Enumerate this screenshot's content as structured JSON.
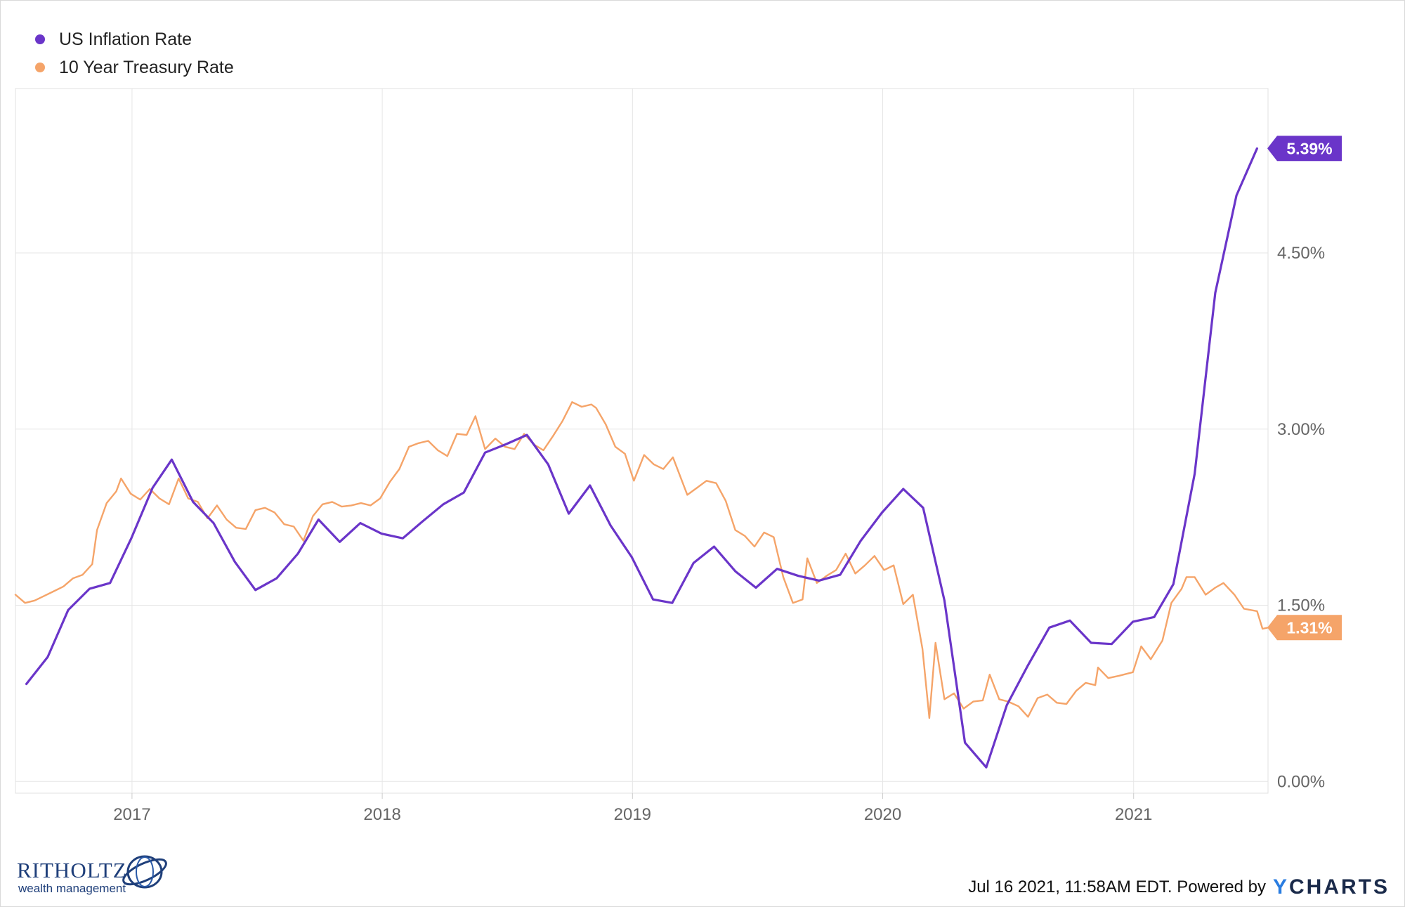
{
  "colors": {
    "inflation": "#6a35c9",
    "treasury": "#f5a469",
    "grid": "#e6e6e6",
    "axis_text": "#666666"
  },
  "footer": {
    "logo_main": "RITHOLTZ",
    "logo_sub": "wealth management",
    "timestamp": "Jul 16 2021, 11:58AM EDT. Powered by",
    "brand_y": "Y",
    "brand_rest": "CHARTS"
  },
  "chart_data": {
    "type": "line",
    "title": "",
    "xlabel": "",
    "ylabel": "",
    "x_ticks": [
      "2017",
      "2018",
      "2019",
      "2020",
      "2021"
    ],
    "y_ticks": [
      "0.00%",
      "1.50%",
      "3.00%",
      "4.50%"
    ],
    "ylim": [
      -0.1,
      5.9
    ],
    "xlim": [
      "2016-07-15",
      "2021-07-16"
    ],
    "grid": true,
    "legend_position": "top-left",
    "series": [
      {
        "name": "US Inflation Rate",
        "color": "#6a35c9",
        "last_label": "5.39%",
        "points": [
          [
            "2016-07-31",
            0.83
          ],
          [
            "2016-08-31",
            1.06
          ],
          [
            "2016-09-30",
            1.46
          ],
          [
            "2016-10-31",
            1.64
          ],
          [
            "2016-11-30",
            1.69
          ],
          [
            "2016-12-31",
            2.07
          ],
          [
            "2017-01-31",
            2.5
          ],
          [
            "2017-02-28",
            2.74
          ],
          [
            "2017-03-31",
            2.38
          ],
          [
            "2017-04-30",
            2.2
          ],
          [
            "2017-05-31",
            1.87
          ],
          [
            "2017-06-30",
            1.63
          ],
          [
            "2017-07-31",
            1.73
          ],
          [
            "2017-08-31",
            1.94
          ],
          [
            "2017-09-30",
            2.23
          ],
          [
            "2017-10-31",
            2.04
          ],
          [
            "2017-11-30",
            2.2
          ],
          [
            "2017-12-31",
            2.11
          ],
          [
            "2018-01-31",
            2.07
          ],
          [
            "2018-02-28",
            2.21
          ],
          [
            "2018-03-31",
            2.36
          ],
          [
            "2018-04-30",
            2.46
          ],
          [
            "2018-05-31",
            2.8
          ],
          [
            "2018-06-30",
            2.87
          ],
          [
            "2018-07-31",
            2.95
          ],
          [
            "2018-08-31",
            2.7
          ],
          [
            "2018-09-30",
            2.28
          ],
          [
            "2018-10-31",
            2.52
          ],
          [
            "2018-11-30",
            2.18
          ],
          [
            "2018-12-31",
            1.91
          ],
          [
            "2019-01-31",
            1.55
          ],
          [
            "2019-02-28",
            1.52
          ],
          [
            "2019-03-31",
            1.86
          ],
          [
            "2019-04-30",
            2.0
          ],
          [
            "2019-05-31",
            1.79
          ],
          [
            "2019-06-30",
            1.65
          ],
          [
            "2019-07-31",
            1.81
          ],
          [
            "2019-08-31",
            1.75
          ],
          [
            "2019-09-30",
            1.71
          ],
          [
            "2019-10-31",
            1.76
          ],
          [
            "2019-11-30",
            2.05
          ],
          [
            "2019-12-31",
            2.29
          ],
          [
            "2020-01-31",
            2.49
          ],
          [
            "2020-02-29",
            2.33
          ],
          [
            "2020-03-31",
            1.54
          ],
          [
            "2020-04-30",
            0.33
          ],
          [
            "2020-05-31",
            0.12
          ],
          [
            "2020-06-30",
            0.65
          ],
          [
            "2020-07-31",
            0.99
          ],
          [
            "2020-08-31",
            1.31
          ],
          [
            "2020-09-30",
            1.37
          ],
          [
            "2020-10-31",
            1.18
          ],
          [
            "2020-11-30",
            1.17
          ],
          [
            "2020-12-31",
            1.36
          ],
          [
            "2021-01-31",
            1.4
          ],
          [
            "2021-02-28",
            1.68
          ],
          [
            "2021-03-31",
            2.62
          ],
          [
            "2021-04-30",
            4.16
          ],
          [
            "2021-05-31",
            4.99
          ],
          [
            "2021-06-30",
            5.39
          ]
        ]
      },
      {
        "name": "10 Year Treasury Rate",
        "color": "#f5a469",
        "last_label": "1.31%",
        "points": [
          [
            "2016-07-15",
            1.59
          ],
          [
            "2016-07-29",
            1.52
          ],
          [
            "2016-08-12",
            1.54
          ],
          [
            "2016-08-26",
            1.58
          ],
          [
            "2016-09-09",
            1.62
          ],
          [
            "2016-09-23",
            1.66
          ],
          [
            "2016-10-07",
            1.73
          ],
          [
            "2016-10-21",
            1.76
          ],
          [
            "2016-11-04",
            1.85
          ],
          [
            "2016-11-11",
            2.14
          ],
          [
            "2016-11-25",
            2.37
          ],
          [
            "2016-12-09",
            2.47
          ],
          [
            "2016-12-16",
            2.58
          ],
          [
            "2016-12-30",
            2.45
          ],
          [
            "2017-01-13",
            2.4
          ],
          [
            "2017-01-27",
            2.49
          ],
          [
            "2017-02-10",
            2.41
          ],
          [
            "2017-02-24",
            2.36
          ],
          [
            "2017-03-10",
            2.58
          ],
          [
            "2017-03-24",
            2.41
          ],
          [
            "2017-04-07",
            2.38
          ],
          [
            "2017-04-21",
            2.24
          ],
          [
            "2017-05-05",
            2.35
          ],
          [
            "2017-05-19",
            2.23
          ],
          [
            "2017-06-02",
            2.16
          ],
          [
            "2017-06-16",
            2.15
          ],
          [
            "2017-06-30",
            2.31
          ],
          [
            "2017-07-14",
            2.33
          ],
          [
            "2017-07-28",
            2.29
          ],
          [
            "2017-08-11",
            2.19
          ],
          [
            "2017-08-25",
            2.17
          ],
          [
            "2017-09-08",
            2.05
          ],
          [
            "2017-09-22",
            2.26
          ],
          [
            "2017-10-06",
            2.36
          ],
          [
            "2017-10-20",
            2.38
          ],
          [
            "2017-11-03",
            2.34
          ],
          [
            "2017-11-17",
            2.35
          ],
          [
            "2017-12-01",
            2.37
          ],
          [
            "2017-12-15",
            2.35
          ],
          [
            "2017-12-29",
            2.41
          ],
          [
            "2018-01-12",
            2.55
          ],
          [
            "2018-01-26",
            2.66
          ],
          [
            "2018-02-09",
            2.85
          ],
          [
            "2018-02-23",
            2.88
          ],
          [
            "2018-03-09",
            2.9
          ],
          [
            "2018-03-23",
            2.82
          ],
          [
            "2018-04-06",
            2.77
          ],
          [
            "2018-04-20",
            2.96
          ],
          [
            "2018-05-04",
            2.95
          ],
          [
            "2018-05-17",
            3.11
          ],
          [
            "2018-05-31",
            2.83
          ],
          [
            "2018-06-15",
            2.92
          ],
          [
            "2018-06-29",
            2.85
          ],
          [
            "2018-07-13",
            2.83
          ],
          [
            "2018-07-27",
            2.96
          ],
          [
            "2018-08-10",
            2.87
          ],
          [
            "2018-08-24",
            2.82
          ],
          [
            "2018-09-07",
            2.94
          ],
          [
            "2018-09-21",
            3.07
          ],
          [
            "2018-10-05",
            3.23
          ],
          [
            "2018-10-19",
            3.19
          ],
          [
            "2018-11-02",
            3.21
          ],
          [
            "2018-11-09",
            3.18
          ],
          [
            "2018-11-23",
            3.04
          ],
          [
            "2018-12-07",
            2.85
          ],
          [
            "2018-12-21",
            2.79
          ],
          [
            "2019-01-03",
            2.56
          ],
          [
            "2019-01-18",
            2.78
          ],
          [
            "2019-02-01",
            2.7
          ],
          [
            "2019-02-15",
            2.66
          ],
          [
            "2019-03-01",
            2.76
          ],
          [
            "2019-03-22",
            2.44
          ],
          [
            "2019-04-05",
            2.5
          ],
          [
            "2019-04-19",
            2.56
          ],
          [
            "2019-05-03",
            2.54
          ],
          [
            "2019-05-17",
            2.39
          ],
          [
            "2019-05-31",
            2.14
          ],
          [
            "2019-06-14",
            2.09
          ],
          [
            "2019-06-28",
            2.0
          ],
          [
            "2019-07-12",
            2.12
          ],
          [
            "2019-07-26",
            2.08
          ],
          [
            "2019-08-09",
            1.74
          ],
          [
            "2019-08-23",
            1.52
          ],
          [
            "2019-09-06",
            1.55
          ],
          [
            "2019-09-13",
            1.9
          ],
          [
            "2019-09-27",
            1.69
          ],
          [
            "2019-10-11",
            1.75
          ],
          [
            "2019-10-25",
            1.8
          ],
          [
            "2019-11-08",
            1.94
          ],
          [
            "2019-11-22",
            1.77
          ],
          [
            "2019-12-06",
            1.84
          ],
          [
            "2019-12-20",
            1.92
          ],
          [
            "2020-01-03",
            1.8
          ],
          [
            "2020-01-17",
            1.84
          ],
          [
            "2020-01-31",
            1.51
          ],
          [
            "2020-02-14",
            1.59
          ],
          [
            "2020-02-28",
            1.13
          ],
          [
            "2020-03-09",
            0.54
          ],
          [
            "2020-03-18",
            1.18
          ],
          [
            "2020-03-31",
            0.7
          ],
          [
            "2020-04-14",
            0.75
          ],
          [
            "2020-04-28",
            0.62
          ],
          [
            "2020-05-12",
            0.68
          ],
          [
            "2020-05-26",
            0.69
          ],
          [
            "2020-06-05",
            0.91
          ],
          [
            "2020-06-19",
            0.7
          ],
          [
            "2020-07-02",
            0.68
          ],
          [
            "2020-07-17",
            0.64
          ],
          [
            "2020-07-31",
            0.55
          ],
          [
            "2020-08-14",
            0.71
          ],
          [
            "2020-08-28",
            0.74
          ],
          [
            "2020-09-11",
            0.67
          ],
          [
            "2020-09-25",
            0.66
          ],
          [
            "2020-10-09",
            0.77
          ],
          [
            "2020-10-23",
            0.84
          ],
          [
            "2020-11-06",
            0.82
          ],
          [
            "2020-11-10",
            0.97
          ],
          [
            "2020-11-25",
            0.88
          ],
          [
            "2020-12-11",
            0.9
          ],
          [
            "2020-12-31",
            0.93
          ],
          [
            "2021-01-12",
            1.15
          ],
          [
            "2021-01-26",
            1.04
          ],
          [
            "2021-02-12",
            1.2
          ],
          [
            "2021-02-25",
            1.52
          ],
          [
            "2021-03-12",
            1.64
          ],
          [
            "2021-03-19",
            1.74
          ],
          [
            "2021-03-31",
            1.74
          ],
          [
            "2021-04-16",
            1.59
          ],
          [
            "2021-04-30",
            1.65
          ],
          [
            "2021-05-12",
            1.69
          ],
          [
            "2021-05-28",
            1.59
          ],
          [
            "2021-06-11",
            1.47
          ],
          [
            "2021-06-30",
            1.45
          ],
          [
            "2021-07-08",
            1.3
          ],
          [
            "2021-07-16",
            1.31
          ]
        ]
      }
    ]
  }
}
